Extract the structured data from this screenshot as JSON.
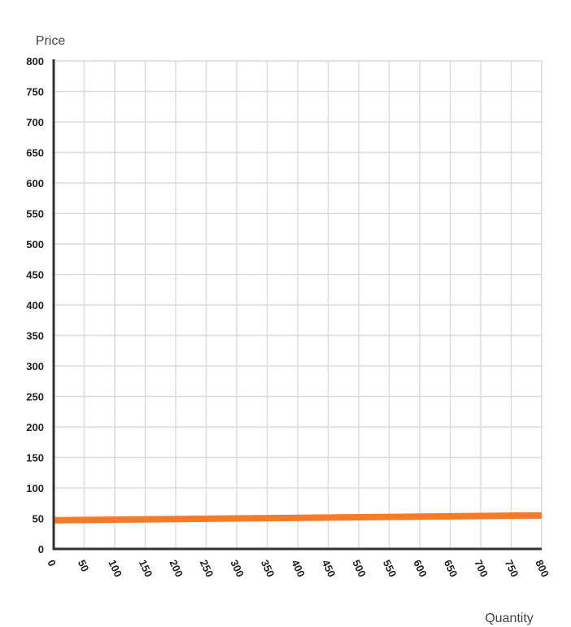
{
  "chart_data": {
    "type": "line",
    "title": "",
    "xlabel": "Quantity",
    "ylabel": "Price",
    "xlim": [
      0,
      800
    ],
    "ylim": [
      0,
      800
    ],
    "x_ticks": [
      "0",
      "50",
      "100",
      "150",
      "200",
      "250",
      "300",
      "350",
      "400",
      "450",
      "500",
      "550",
      "600",
      "650",
      "700",
      "750",
      "800"
    ],
    "y_ticks": [
      "0",
      "50",
      "100",
      "150",
      "200",
      "250",
      "300",
      "350",
      "400",
      "450",
      "500",
      "550",
      "600",
      "650",
      "700",
      "750",
      "800"
    ],
    "grid": true,
    "series": [
      {
        "color": "#f47b2a",
        "points": [
          [
            0,
            47
          ],
          [
            800,
            55
          ]
        ]
      }
    ]
  }
}
